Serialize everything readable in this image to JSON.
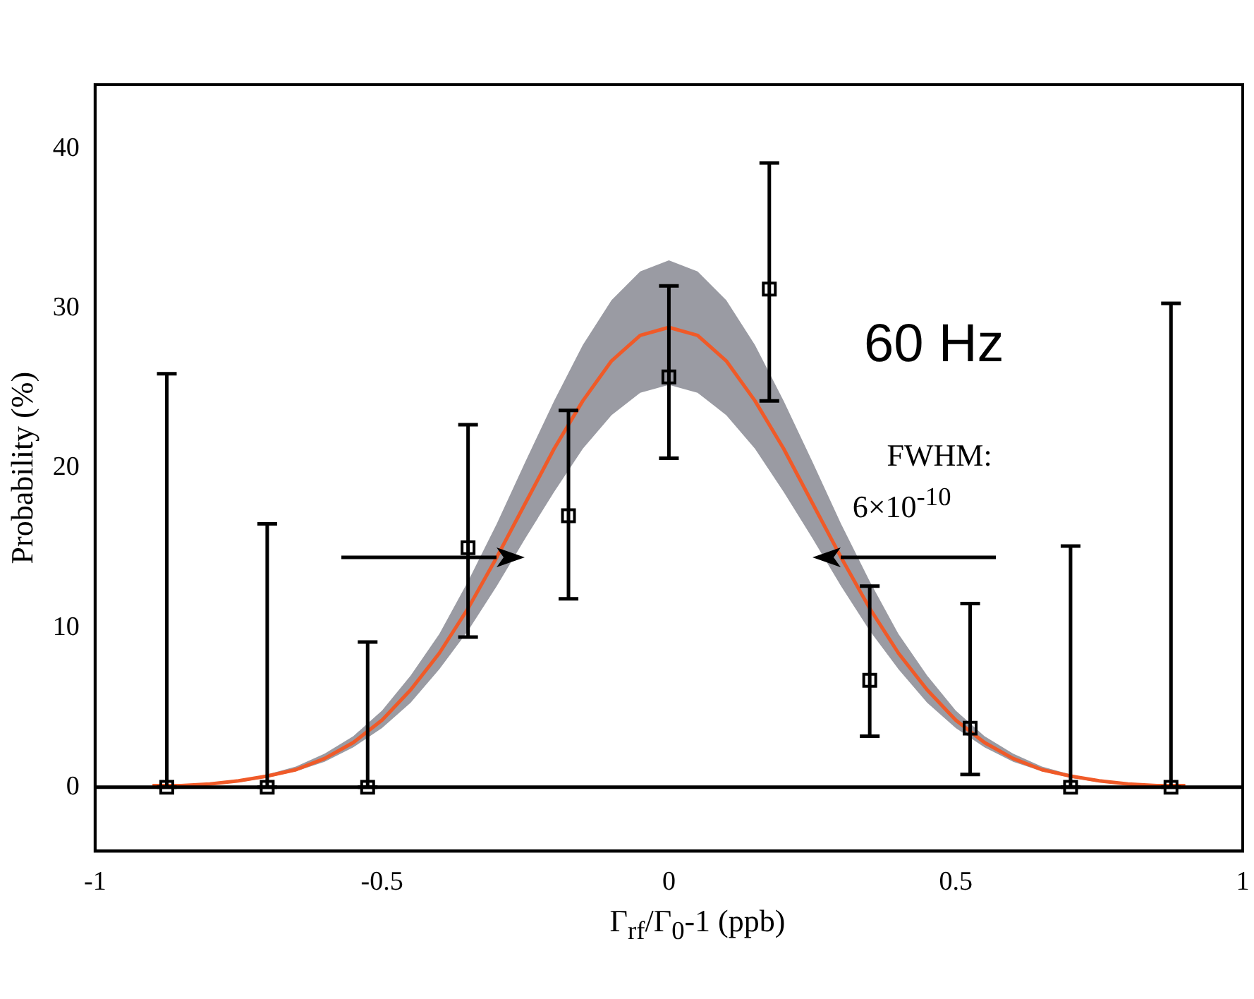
{
  "chart_data": {
    "type": "scatter",
    "xlabel": "Γ$_{rf}$/Γ$_{0}$-1 (ppb)",
    "ylabel": "Probability (%)",
    "xlim": [
      -1,
      1
    ],
    "xticks": [
      -1,
      -0.5,
      0,
      0.5,
      1
    ],
    "ylim": [
      -4,
      44
    ],
    "yticks": [
      0,
      10,
      20,
      30,
      40
    ],
    "grid": false,
    "legend": false,
    "series": [
      {
        "type": "line",
        "color": "#f05a28",
        "x": [
          -0.9,
          -0.85,
          -0.8,
          -0.75,
          -0.7,
          -0.65,
          -0.6,
          -0.55,
          -0.5,
          -0.45,
          -0.4,
          -0.35,
          -0.3,
          -0.25,
          -0.2,
          -0.15,
          -0.1,
          -0.05,
          0,
          0.05,
          0.1,
          0.15,
          0.2,
          0.25,
          0.3,
          0.35,
          0.4,
          0.45,
          0.5,
          0.55,
          0.6,
          0.65,
          0.7,
          0.75,
          0.8,
          0.85,
          0.9
        ],
        "values": [
          0.1,
          0.1,
          0.2,
          0.4,
          0.7,
          1.1,
          1.8,
          2.8,
          4.2,
          6.1,
          8.4,
          11.2,
          14.4,
          17.8,
          21.2,
          24.2,
          26.7,
          28.3,
          28.8,
          28.3,
          26.7,
          24.2,
          21.2,
          17.8,
          14.4,
          11.2,
          8.4,
          6.1,
          4.2,
          2.8,
          1.8,
          1.1,
          0.7,
          0.4,
          0.2,
          0.1,
          0.1
        ],
        "lower": [
          0.1,
          0.1,
          0.2,
          0.3,
          0.6,
          1.0,
          1.6,
          2.5,
          3.7,
          5.3,
          7.4,
          9.8,
          12.6,
          15.6,
          18.5,
          21.2,
          23.3,
          24.7,
          25.2,
          24.7,
          23.3,
          21.2,
          18.5,
          15.6,
          12.6,
          9.8,
          7.4,
          5.3,
          3.7,
          2.5,
          1.6,
          1.0,
          0.6,
          0.3,
          0.2,
          0.1,
          0.1
        ],
        "upper": [
          0.1,
          0.1,
          0.2,
          0.4,
          0.8,
          1.3,
          2.1,
          3.2,
          4.8,
          7.0,
          9.6,
          12.9,
          16.5,
          20.4,
          24.2,
          27.7,
          30.5,
          32.3,
          33.0,
          32.3,
          30.5,
          27.7,
          24.2,
          20.4,
          16.5,
          12.9,
          9.6,
          7.0,
          4.8,
          3.2,
          2.1,
          1.3,
          0.8,
          0.4,
          0.2,
          0.1,
          0.1
        ]
      },
      {
        "color": "#000000",
        "marker": "square",
        "x": [
          -0.875,
          -0.7,
          -0.525,
          -0.35,
          -0.175,
          0,
          0.175,
          0.35,
          0.525,
          0.7,
          0.875
        ],
        "values": [
          0,
          0,
          0,
          15,
          17,
          25.7,
          31.2,
          6.7,
          3.7,
          0,
          0
        ],
        "errors": [
          [
            0,
            25.9
          ],
          [
            0,
            16.5
          ],
          [
            0,
            9.1
          ],
          [
            9.4,
            22.7
          ],
          [
            11.8,
            23.6
          ],
          [
            20.6,
            31.4
          ],
          [
            24.2,
            39.1
          ],
          [
            3.2,
            12.6
          ],
          [
            0.8,
            11.5
          ],
          [
            0,
            15.1
          ],
          [
            0,
            30.3
          ]
        ]
      }
    ],
    "ref_lines": [
      {
        "axis": "y",
        "value": 0,
        "color": "#000000"
      }
    ],
    "annotations": [
      "60 Hz",
      "FWHM:",
      "6×10$^{-10}$"
    ]
  }
}
